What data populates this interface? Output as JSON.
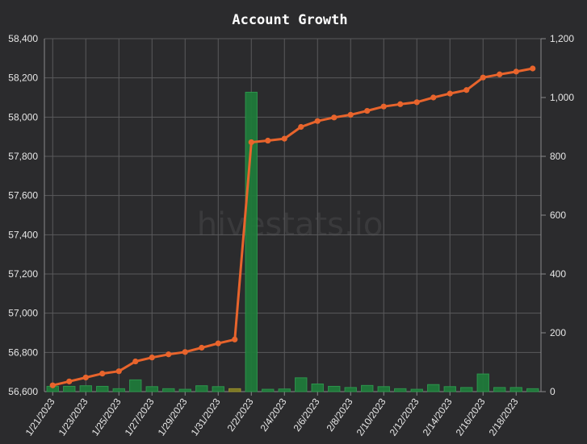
{
  "chart_data": {
    "type": "line",
    "title": "Account Growth",
    "watermark": "hivestats.io",
    "x": [
      "1/21/2023",
      "1/22/2023",
      "1/23/2023",
      "1/24/2023",
      "1/25/2023",
      "1/26/2023",
      "1/27/2023",
      "1/28/2023",
      "1/29/2023",
      "1/30/2023",
      "1/31/2023",
      "2/1/2023",
      "2/2/2023",
      "2/3/2023",
      "2/4/2023",
      "2/5/2023",
      "2/6/2023",
      "2/7/2023",
      "2/8/2023",
      "2/9/2023",
      "2/10/2023",
      "2/11/2023",
      "2/12/2023",
      "2/13/2023",
      "2/14/2023",
      "2/15/2023",
      "2/16/2023",
      "2/17/2023",
      "2/18/2023",
      "2/19/2023"
    ],
    "x_tick_labels": [
      "1/21/2023",
      "1/23/2023",
      "1/25/2023",
      "1/27/2023",
      "1/29/2023",
      "1/31/2023",
      "2/2/2023",
      "2/4/2023",
      "2/6/2023",
      "2/8/2023",
      "2/10/2023",
      "2/12/2023",
      "2/14/2023",
      "2/16/2023",
      "2/18/2023"
    ],
    "series": [
      {
        "type": "line",
        "axis": "left",
        "color": "#e8642c",
        "values": [
          56632,
          56652,
          56672,
          56692,
          56704,
          56754,
          56774,
          56790,
          56802,
          56824,
          56846,
          56866,
          57872,
          57880,
          57890,
          57950,
          57980,
          57998,
          58012,
          58032,
          58054,
          58066,
          58076,
          58100,
          58120,
          58138,
          58202,
          58218,
          58232,
          58248
        ]
      },
      {
        "type": "bar",
        "axis": "right",
        "color": "#1f7a3a",
        "highlight_color": "#807a22",
        "highlight_index": 11,
        "values": [
          18,
          18,
          20,
          18,
          10,
          40,
          17,
          10,
          8,
          20,
          17,
          10,
          1018,
          8,
          9,
          47,
          26,
          18,
          14,
          21,
          17,
          10,
          8,
          24,
          17,
          14,
          60,
          14,
          14,
          10
        ]
      }
    ],
    "left_axis": {
      "min": 56600,
      "max": 58400,
      "step": 200,
      "tick_labels": [
        "56,600",
        "56,800",
        "57,000",
        "57,200",
        "57,400",
        "57,600",
        "57,800",
        "58,000",
        "58,200",
        "58,400"
      ]
    },
    "right_axis": {
      "min": 0,
      "max": 1200,
      "step": 200,
      "tick_labels": [
        "0",
        "200",
        "400",
        "600",
        "800",
        "1,000",
        "1,200"
      ]
    },
    "grid": true
  }
}
